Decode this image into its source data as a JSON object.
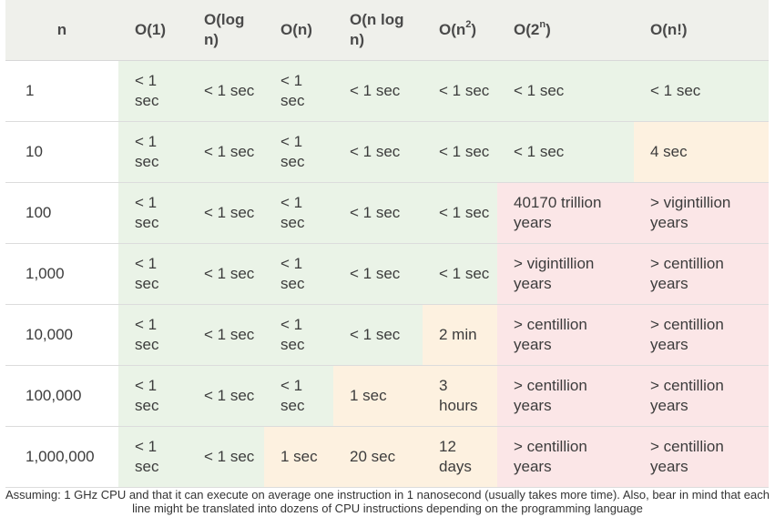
{
  "header": {
    "n": "n",
    "cols": [
      {
        "base": "O(1)",
        "sup": "",
        "tail": ""
      },
      {
        "base": "O(log n)",
        "sup": "",
        "tail": ""
      },
      {
        "base": "O(n)",
        "sup": "",
        "tail": ""
      },
      {
        "base": "O(n log n)",
        "sup": "",
        "tail": ""
      },
      {
        "base": "O(n",
        "sup": "2",
        "tail": ")"
      },
      {
        "base": "O(2",
        "sup": "n",
        "tail": ")"
      },
      {
        "base": "O(n!)",
        "sup": "",
        "tail": ""
      }
    ]
  },
  "rows": [
    {
      "n": "1",
      "cells": [
        {
          "v": "< 1 sec",
          "c": "g"
        },
        {
          "v": "< 1 sec",
          "c": "g"
        },
        {
          "v": "< 1 sec",
          "c": "g"
        },
        {
          "v": "< 1 sec",
          "c": "g"
        },
        {
          "v": "< 1 sec",
          "c": "g"
        },
        {
          "v": "< 1 sec",
          "c": "g"
        },
        {
          "v": "< 1 sec",
          "c": "g"
        }
      ]
    },
    {
      "n": "10",
      "cells": [
        {
          "v": "< 1 sec",
          "c": "g"
        },
        {
          "v": "< 1 sec",
          "c": "g"
        },
        {
          "v": "< 1 sec",
          "c": "g"
        },
        {
          "v": "< 1 sec",
          "c": "g"
        },
        {
          "v": "< 1 sec",
          "c": "g"
        },
        {
          "v": "< 1 sec",
          "c": "g"
        },
        {
          "v": "4 sec",
          "c": "y"
        }
      ]
    },
    {
      "n": "100",
      "cells": [
        {
          "v": "< 1 sec",
          "c": "g"
        },
        {
          "v": "< 1 sec",
          "c": "g"
        },
        {
          "v": "< 1 sec",
          "c": "g"
        },
        {
          "v": "< 1 sec",
          "c": "g"
        },
        {
          "v": "< 1 sec",
          "c": "g"
        },
        {
          "v": "40170 trillion years",
          "c": "r"
        },
        {
          "v": "> vigintillion years",
          "c": "r"
        }
      ]
    },
    {
      "n": "1,000",
      "cells": [
        {
          "v": "< 1 sec",
          "c": "g"
        },
        {
          "v": "< 1 sec",
          "c": "g"
        },
        {
          "v": "< 1 sec",
          "c": "g"
        },
        {
          "v": "< 1 sec",
          "c": "g"
        },
        {
          "v": "< 1 sec",
          "c": "g"
        },
        {
          "v": "> vigintillion years",
          "c": "r"
        },
        {
          "v": "> centillion years",
          "c": "r"
        }
      ]
    },
    {
      "n": "10,000",
      "cells": [
        {
          "v": "< 1 sec",
          "c": "g"
        },
        {
          "v": "< 1 sec",
          "c": "g"
        },
        {
          "v": "< 1 sec",
          "c": "g"
        },
        {
          "v": "< 1 sec",
          "c": "g"
        },
        {
          "v": "2 min",
          "c": "y"
        },
        {
          "v": "> centillion years",
          "c": "r"
        },
        {
          "v": "> centillion years",
          "c": "r"
        }
      ]
    },
    {
      "n": "100,000",
      "cells": [
        {
          "v": "< 1 sec",
          "c": "g"
        },
        {
          "v": "< 1 sec",
          "c": "g"
        },
        {
          "v": "< 1 sec",
          "c": "g"
        },
        {
          "v": "1 sec",
          "c": "y"
        },
        {
          "v": "3 hours",
          "c": "y"
        },
        {
          "v": "> centillion years",
          "c": "r"
        },
        {
          "v": "> centillion years",
          "c": "r"
        }
      ]
    },
    {
      "n": "1,000,000",
      "cells": [
        {
          "v": "< 1 sec",
          "c": "g"
        },
        {
          "v": "< 1 sec",
          "c": "g"
        },
        {
          "v": "1 sec",
          "c": "y"
        },
        {
          "v": "20 sec",
          "c": "y"
        },
        {
          "v": "12 days",
          "c": "y"
        },
        {
          "v": "> centillion years",
          "c": "r"
        },
        {
          "v": "> centillion years",
          "c": "r"
        }
      ]
    }
  ],
  "footnote": "Assuming: 1 GHz CPU and that it can execute on average one instruction in 1 nanosecond (usually takes more time). Also, bear in mind that each line might be translated into dozens of CPU instructions depending on the programming language",
  "colors": {
    "g": "#eaf3e7",
    "y": "#fdf1e0",
    "r": "#fbe6e7",
    "header": "#eff0eb"
  }
}
